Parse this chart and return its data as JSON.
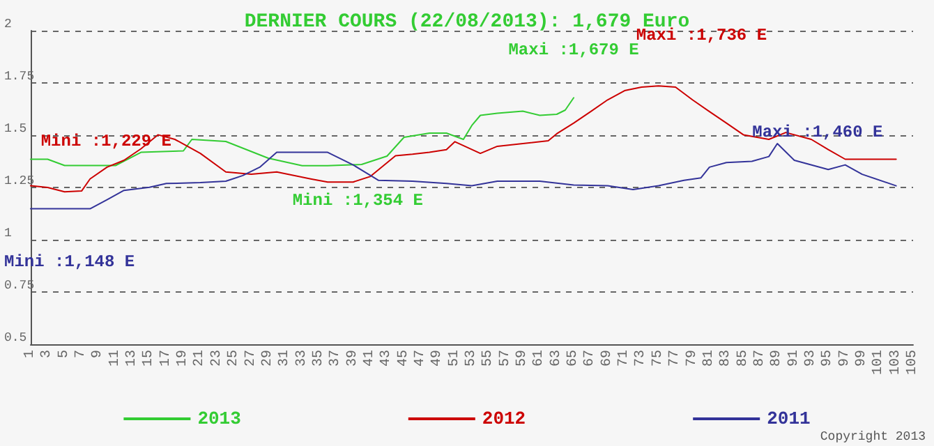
{
  "chart_data": {
    "type": "line",
    "title": "DERNIER COURS (22/08/2013): 1,679 Euro",
    "xlim": [
      1,
      105
    ],
    "xticks": [
      1,
      3,
      5,
      7,
      9,
      11,
      13,
      15,
      17,
      19,
      21,
      23,
      25,
      27,
      29,
      31,
      33,
      35,
      37,
      39,
      41,
      43,
      45,
      47,
      49,
      51,
      53,
      55,
      57,
      59,
      61,
      63,
      65,
      67,
      69,
      71,
      73,
      75,
      77,
      79,
      81,
      83,
      85,
      87,
      89,
      91,
      93,
      95,
      97,
      99,
      101,
      103,
      105
    ],
    "ylim": [
      0.5,
      2
    ],
    "yticks": [
      0.5,
      0.75,
      1,
      1.25,
      1.5,
      1.75,
      2
    ],
    "grid": "y",
    "legend": "bottom",
    "line_style": "solid",
    "series": [
      {
        "name": "2013",
        "color": "#33cc33",
        "x": [
          1,
          3,
          5,
          11,
          14,
          19,
          20,
          24,
          29,
          33,
          36,
          40,
          43,
          45,
          48,
          50,
          52,
          53,
          54,
          56,
          59,
          61,
          63,
          64,
          65
        ],
        "values": [
          1.385,
          1.385,
          1.355,
          1.355,
          1.418,
          1.425,
          1.48,
          1.47,
          1.39,
          1.354,
          1.354,
          1.36,
          1.4,
          1.49,
          1.51,
          1.51,
          1.48,
          1.547,
          1.595,
          1.605,
          1.615,
          1.595,
          1.6,
          1.62,
          1.679
        ]
      },
      {
        "name": "2012",
        "color": "#cc0000",
        "x": [
          1,
          3,
          5,
          7,
          8,
          10,
          12,
          14,
          16,
          18,
          21,
          24,
          27,
          30,
          34,
          36,
          39,
          41,
          44,
          46,
          48,
          50,
          51,
          54,
          56,
          62,
          63,
          65,
          67,
          69,
          71,
          73,
          75,
          77,
          79,
          81,
          83,
          85,
          88,
          90,
          93,
          95,
          97,
          103
        ],
        "values": [
          1.258,
          1.25,
          1.229,
          1.233,
          1.291,
          1.347,
          1.38,
          1.435,
          1.502,
          1.48,
          1.413,
          1.324,
          1.313,
          1.324,
          1.291,
          1.276,
          1.276,
          1.302,
          1.402,
          1.409,
          1.418,
          1.431,
          1.469,
          1.413,
          1.447,
          1.473,
          1.507,
          1.558,
          1.613,
          1.669,
          1.713,
          1.73,
          1.736,
          1.73,
          1.669,
          1.613,
          1.558,
          1.502,
          1.48,
          1.513,
          1.48,
          1.431,
          1.385,
          1.385
        ]
      },
      {
        "name": "2011",
        "color": "#333399",
        "x": [
          1,
          4,
          8,
          10,
          12,
          15,
          17,
          21,
          24,
          26,
          28,
          30,
          36,
          39,
          42,
          46,
          50,
          53,
          56,
          61,
          65,
          69,
          72,
          75,
          78,
          80,
          81,
          83,
          86,
          88,
          89,
          91,
          95,
          97,
          99,
          103
        ],
        "values": [
          1.148,
          1.148,
          1.148,
          1.191,
          1.236,
          1.251,
          1.269,
          1.273,
          1.28,
          1.307,
          1.347,
          1.418,
          1.418,
          1.358,
          1.284,
          1.28,
          1.269,
          1.258,
          1.28,
          1.28,
          1.262,
          1.258,
          1.24,
          1.258,
          1.284,
          1.296,
          1.347,
          1.369,
          1.375,
          1.398,
          1.46,
          1.38,
          1.336,
          1.358,
          1.313,
          1.258
        ]
      }
    ],
    "annotations": [
      {
        "text": "Mini :1,229 E",
        "x": 5,
        "y": 1.229
      },
      {
        "text": "Mini :1,354 E",
        "x": 34,
        "y": 1.354
      },
      {
        "text": "Maxi :1,679 E",
        "x": 65,
        "y": 1.679
      },
      {
        "text": "Maxi :1,736 E",
        "x": 75,
        "y": 1.736
      },
      {
        "text": "Maxi :1,460 E",
        "x": 89,
        "y": 1.46
      },
      {
        "text": "Mini :1,148 E",
        "x": 1,
        "y": 1.148
      },
      "Copyright 2013"
    ]
  }
}
